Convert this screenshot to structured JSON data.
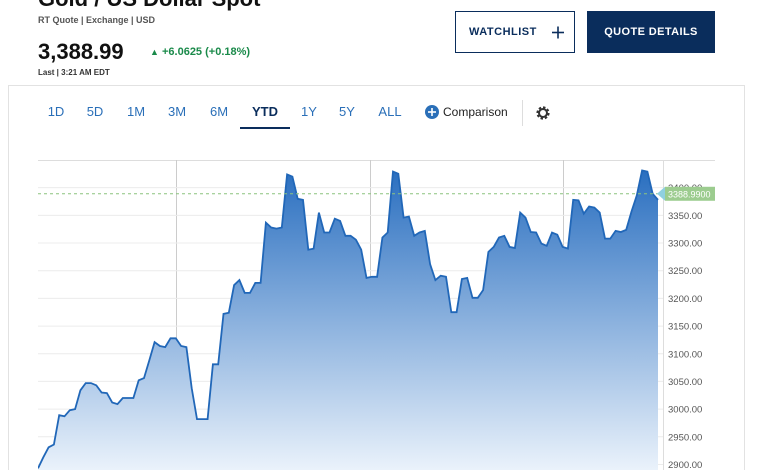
{
  "header": {
    "title": "Gold / US Dollar Spot",
    "source": "RT Quote | Exchange | USD",
    "price": "3,388.99",
    "change": "+6.0625 (+0.18%)",
    "last": "Last | 3:21 AM EDT"
  },
  "buttons": {
    "watchlist": "WATCHLIST",
    "quote_details": "QUOTE DETAILS"
  },
  "tabs": [
    "1D",
    "5D",
    "1M",
    "3M",
    "6M",
    "YTD",
    "1Y",
    "5Y",
    "ALL"
  ],
  "selected_tab": "YTD",
  "comparison": "Comparison",
  "chart_data": {
    "type": "area",
    "color": "#2167b8",
    "values": [
      2893,
      2913,
      2931,
      2936,
      2989,
      2987,
      2998,
      3000,
      3034,
      3047,
      3047,
      3043,
      3030,
      3029,
      3012,
      3009,
      3020,
      3020,
      3020,
      3052,
      3056,
      3088,
      3121,
      3114,
      3112,
      3128,
      3128,
      3114,
      3112,
      3038,
      2982,
      2982,
      2982,
      3081,
      3081,
      3172,
      3174,
      3224,
      3233,
      3210,
      3210,
      3228,
      3228,
      3337,
      3328,
      3326,
      3328,
      3424,
      3420,
      3380,
      3378,
      3288,
      3290,
      3355,
      3319,
      3319,
      3344,
      3340,
      3313,
      3313,
      3306,
      3288,
      3237,
      3239,
      3239,
      3310,
      3319,
      3429,
      3425,
      3346,
      3348,
      3313,
      3319,
      3322,
      3262,
      3233,
      3241,
      3239,
      3175,
      3175,
      3235,
      3237,
      3201,
      3201,
      3215,
      3284,
      3293,
      3310,
      3313,
      3293,
      3291,
      3355,
      3346,
      3320,
      3319,
      3299,
      3295,
      3319,
      3315,
      3293,
      3290,
      3378,
      3377,
      3353,
      3366,
      3364,
      3355,
      3308,
      3308,
      3322,
      3320,
      3324,
      3357,
      3386,
      3431,
      3429,
      3389,
      3378
    ],
    "ylim": [
      2890,
      3450
    ],
    "yticks": [
      {
        "value": 2900,
        "label": "2900.00"
      },
      {
        "value": 2950,
        "label": "2950.00"
      },
      {
        "value": 3000,
        "label": "3000.00"
      },
      {
        "value": 3050,
        "label": "3050.00"
      },
      {
        "value": 3100,
        "label": "3100.00"
      },
      {
        "value": 3150,
        "label": "3150.00"
      },
      {
        "value": 3200,
        "label": "3200.00"
      },
      {
        "value": 3250,
        "label": "3250.00"
      },
      {
        "value": 3300,
        "label": "3300.00"
      },
      {
        "value": 3350,
        "label": "3350.00"
      },
      {
        "value": 3400,
        "label": "3400.00"
      }
    ],
    "grid": true,
    "last_price": {
      "value": 3388.99,
      "label": "3388.9900"
    }
  }
}
